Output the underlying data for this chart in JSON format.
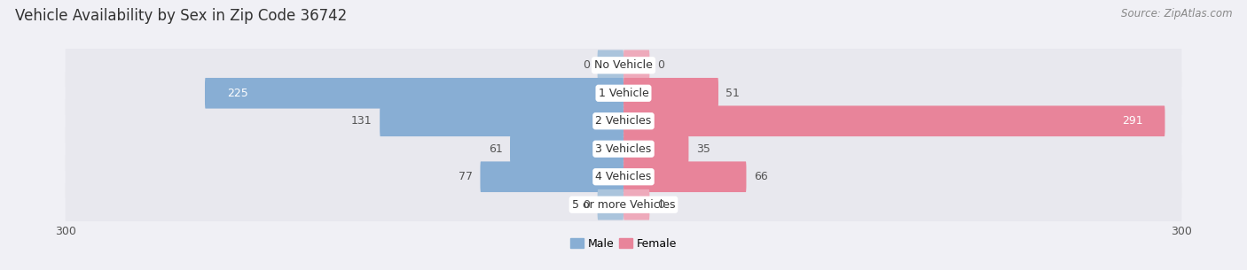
{
  "title": "Vehicle Availability by Sex in Zip Code 36742",
  "source": "Source: ZipAtlas.com",
  "categories": [
    "No Vehicle",
    "1 Vehicle",
    "2 Vehicles",
    "3 Vehicles",
    "4 Vehicles",
    "5 or more Vehicles"
  ],
  "male_values": [
    0,
    225,
    131,
    61,
    77,
    0
  ],
  "female_values": [
    0,
    51,
    291,
    35,
    66,
    0
  ],
  "male_color": "#88aed4",
  "female_color": "#e8849a",
  "male_color_zero": "#aac4dc",
  "female_color_zero": "#eeaabb",
  "bar_bg_color": "#e8e8ee",
  "row_bg_even": "#f4f4f8",
  "row_bg_odd": "#eaeaef",
  "xlim_abs": 300,
  "background_color": "#f0f0f5",
  "title_fontsize": 12,
  "source_fontsize": 8.5,
  "label_fontsize": 9,
  "category_fontsize": 9,
  "legend_fontsize": 9,
  "tick_fontsize": 9
}
